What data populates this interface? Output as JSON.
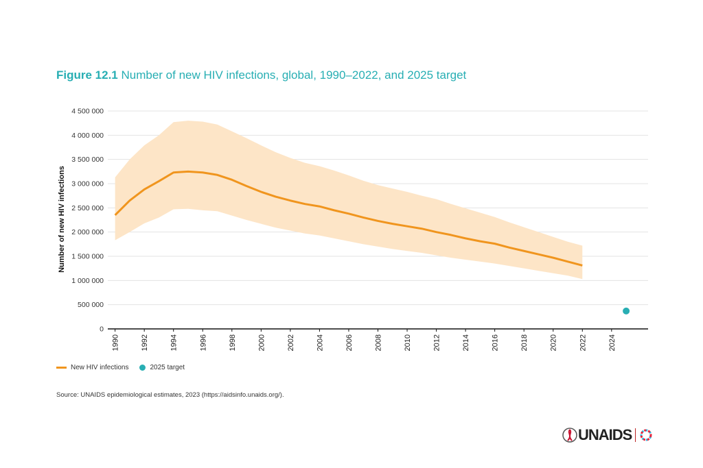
{
  "figure": {
    "label": "Figure 12.1",
    "title": "Number of new HIV infections, global, 1990–2022, and 2025 target",
    "source": "Source: UNAIDS epidemiological estimates, 2023 (https://aidsinfo.unaids.org/).",
    "logo_text": "UNAIDS"
  },
  "legend": {
    "series_label": "New HIV infections",
    "target_label": "2025 target"
  },
  "colors": {
    "line": "#f0951e",
    "band": "#fde5c7",
    "target": "#28aeb3",
    "title": "#27aeb3"
  },
  "chart_data": {
    "type": "line",
    "title": "Number of new HIV infections, global, 1990–2022, and 2025 target",
    "xlabel": "",
    "ylabel": "Number of new HIV infections",
    "ylim": [
      0,
      4500000
    ],
    "xlim": [
      1989.5,
      2026.5
    ],
    "yticks": [
      0,
      500000,
      1000000,
      1500000,
      2000000,
      2500000,
      3000000,
      3500000,
      4000000,
      4500000
    ],
    "ytick_labels": [
      "0",
      "500 000",
      "1 000 000",
      "1 500 000",
      "2 000 000",
      "2 500 000",
      "3 000 000",
      "3 500 000",
      "4 000 000",
      "4 500 000"
    ],
    "xticks": [
      1990,
      1992,
      1994,
      1996,
      1998,
      2000,
      2002,
      2004,
      2006,
      2008,
      2010,
      2012,
      2014,
      2016,
      2018,
      2020,
      2022,
      2024
    ],
    "x": [
      1990,
      1991,
      1992,
      1993,
      1994,
      1995,
      1996,
      1997,
      1998,
      1999,
      2000,
      2001,
      2002,
      2003,
      2004,
      2005,
      2006,
      2007,
      2008,
      2009,
      2010,
      2011,
      2012,
      2013,
      2014,
      2015,
      2016,
      2017,
      2018,
      2019,
      2020,
      2021,
      2022
    ],
    "series": [
      {
        "name": "New HIV infections",
        "values": [
          2350000,
          2650000,
          2880000,
          3050000,
          3230000,
          3250000,
          3230000,
          3180000,
          3080000,
          2950000,
          2830000,
          2730000,
          2650000,
          2580000,
          2530000,
          2450000,
          2380000,
          2300000,
          2230000,
          2170000,
          2120000,
          2070000,
          2000000,
          1940000,
          1870000,
          1810000,
          1760000,
          1680000,
          1610000,
          1540000,
          1470000,
          1390000,
          1310000
        ],
        "lower": [
          1830000,
          2000000,
          2180000,
          2300000,
          2470000,
          2480000,
          2450000,
          2430000,
          2340000,
          2250000,
          2170000,
          2090000,
          2030000,
          1970000,
          1930000,
          1870000,
          1810000,
          1750000,
          1700000,
          1650000,
          1610000,
          1570000,
          1520000,
          1470000,
          1430000,
          1390000,
          1350000,
          1300000,
          1250000,
          1200000,
          1150000,
          1100000,
          1030000
        ],
        "upper": [
          3130000,
          3500000,
          3790000,
          4000000,
          4270000,
          4300000,
          4280000,
          4220000,
          4080000,
          3940000,
          3790000,
          3650000,
          3530000,
          3430000,
          3360000,
          3270000,
          3170000,
          3060000,
          2970000,
          2900000,
          2830000,
          2750000,
          2680000,
          2580000,
          2490000,
          2400000,
          2310000,
          2200000,
          2100000,
          2000000,
          1900000,
          1800000,
          1720000
        ]
      }
    ],
    "target": {
      "name": "2025 target",
      "x": 2025,
      "y": 370000
    },
    "legend_position": "bottom-left"
  }
}
